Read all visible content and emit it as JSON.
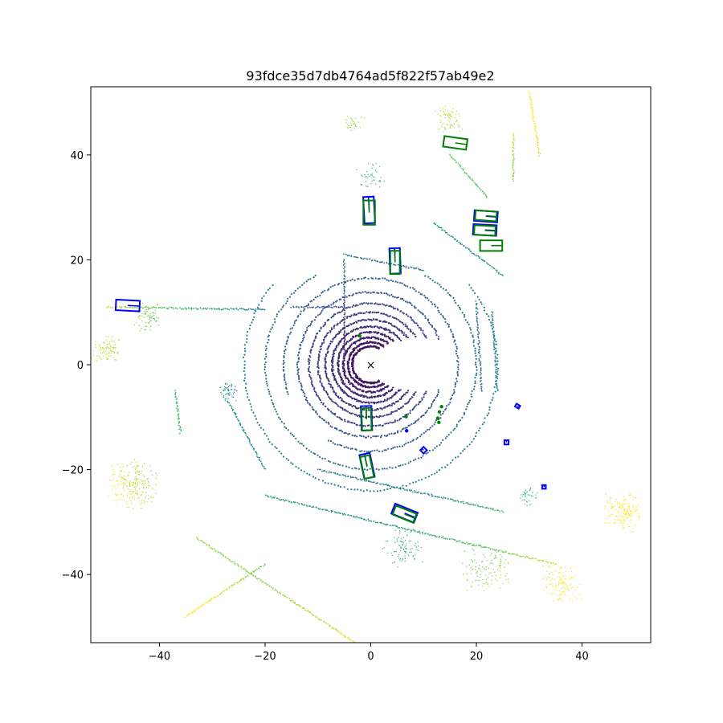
{
  "chart_data": {
    "type": "scatter",
    "title": "93fdce35d7db4764ad5f822f57ab49e2",
    "xlabel": "",
    "ylabel": "",
    "xlim": [
      -53,
      53
    ],
    "ylim": [
      -53,
      53
    ],
    "xticks": [
      -40,
      -20,
      0,
      20,
      40
    ],
    "yticks": [
      -40,
      -20,
      0,
      20,
      40
    ],
    "xtick_labels": [
      "−40",
      "−20",
      "0",
      "20",
      "40"
    ],
    "ytick_labels": [
      "−40",
      "−20",
      "0",
      "20",
      "40"
    ],
    "grid": false,
    "colormap": "viridis",
    "color_encodes": "distance from origin",
    "ego_marker": {
      "symbol": "×",
      "x": 0,
      "y": 0
    },
    "rings": [
      {
        "r": 3.5,
        "gap_start": -60,
        "gap_end": 60
      },
      {
        "r": 4.3,
        "gap_start": -55,
        "gap_end": 55
      },
      {
        "r": 5.2,
        "gap_start": -50,
        "gap_end": 50
      },
      {
        "r": 6.2,
        "gap_start": -45,
        "gap_end": 45
      },
      {
        "r": 7.3,
        "gap_start": -40,
        "gap_end": 40
      },
      {
        "r": 8.6,
        "gap_start": -35,
        "gap_end": 35
      },
      {
        "r": 10.0,
        "gap_start": -30,
        "gap_end": 30
      },
      {
        "r": 11.7,
        "gap_start": -25,
        "gap_end": 25
      },
      {
        "r": 13.8,
        "gap_start": -20,
        "gap_end": 20
      },
      {
        "r": 16.5,
        "gap_start": 200,
        "gap_end": 240
      },
      {
        "r": 20.0,
        "gap_start": 60,
        "gap_end": 120
      },
      {
        "r": 24.0,
        "gap_start": 40,
        "gap_end": 140
      }
    ],
    "segments": [
      {
        "x": [
          -50,
          -20
        ],
        "y": [
          11,
          10.5
        ]
      },
      {
        "x": [
          -15,
          -5
        ],
        "y": [
          11,
          11
        ]
      },
      {
        "x": [
          -35,
          -20
        ],
        "y": [
          -48,
          -38
        ]
      },
      {
        "x": [
          -33,
          -3
        ],
        "y": [
          -33,
          -53
        ]
      },
      {
        "x": [
          -20,
          35
        ],
        "y": [
          -25,
          -38
        ]
      },
      {
        "x": [
          -10,
          25
        ],
        "y": [
          -20,
          -28
        ]
      },
      {
        "x": [
          -5,
          -5
        ],
        "y": [
          2,
          20
        ]
      },
      {
        "x": [
          -5,
          10
        ],
        "y": [
          21,
          18
        ]
      },
      {
        "x": [
          12,
          25
        ],
        "y": [
          27,
          17
        ]
      },
      {
        "x": [
          15,
          22
        ],
        "y": [
          40,
          32
        ]
      },
      {
        "x": [
          30,
          32
        ],
        "y": [
          52,
          40
        ]
      },
      {
        "x": [
          27,
          27
        ],
        "y": [
          44,
          35
        ]
      },
      {
        "x": [
          23,
          24
        ],
        "y": [
          10,
          -5
        ]
      },
      {
        "x": [
          20,
          21
        ],
        "y": [
          12,
          -5
        ]
      },
      {
        "x": [
          -37,
          -36
        ],
        "y": [
          -5,
          -13
        ]
      },
      {
        "x": [
          -27,
          -20
        ],
        "y": [
          -7,
          -20
        ]
      }
    ],
    "clusters": [
      {
        "cx": -45,
        "cy": -23,
        "spread": 5,
        "n": 220
      },
      {
        "cx": 48,
        "cy": -28,
        "spread": 4,
        "n": 160
      },
      {
        "cx": 36,
        "cy": -42,
        "spread": 4,
        "n": 120
      },
      {
        "cx": 22,
        "cy": -39,
        "spread": 5,
        "n": 120
      },
      {
        "cx": 6,
        "cy": -35,
        "spread": 4,
        "n": 90
      },
      {
        "cx": -50,
        "cy": 3,
        "spread": 3,
        "n": 90
      },
      {
        "cx": -42,
        "cy": 9,
        "spread": 3,
        "n": 70
      },
      {
        "cx": -27,
        "cy": -5,
        "spread": 2,
        "n": 50
      },
      {
        "cx": 15,
        "cy": 47,
        "spread": 3,
        "n": 70
      },
      {
        "cx": 30,
        "cy": -25,
        "spread": 2,
        "n": 40
      },
      {
        "cx": -3,
        "cy": 46,
        "spread": 2,
        "n": 30
      },
      {
        "cx": 0,
        "cy": 36,
        "spread": 3,
        "n": 40
      }
    ],
    "boxes": [
      {
        "cx": -46,
        "cy": 11.3,
        "w": 4.5,
        "h": 2.0,
        "angle": -3,
        "color": "#0000ff"
      },
      {
        "cx": -0.3,
        "cy": 29.5,
        "w": 2.0,
        "h": 5.0,
        "angle": 3,
        "color": "#0000ff"
      },
      {
        "cx": -0.3,
        "cy": 29.0,
        "w": 2.2,
        "h": 4.6,
        "angle": 0,
        "color": "#008000"
      },
      {
        "cx": 4.6,
        "cy": 19.8,
        "w": 2.0,
        "h": 4.8,
        "angle": 2,
        "color": "#0000ff"
      },
      {
        "cx": 4.6,
        "cy": 19.5,
        "w": 1.8,
        "h": 4.4,
        "angle": 0,
        "color": "#008000"
      },
      {
        "cx": 16.0,
        "cy": 42.3,
        "w": 4.4,
        "h": 2.0,
        "angle": -8,
        "color": "#008000"
      },
      {
        "cx": 21.8,
        "cy": 28.3,
        "w": 4.4,
        "h": 2.0,
        "angle": -4,
        "color": "#0000ff"
      },
      {
        "cx": 21.8,
        "cy": 28.4,
        "w": 4.0,
        "h": 1.8,
        "angle": -4,
        "color": "#008000"
      },
      {
        "cx": 21.6,
        "cy": 25.7,
        "w": 4.4,
        "h": 2.0,
        "angle": -3,
        "color": "#0000ff"
      },
      {
        "cx": 21.6,
        "cy": 25.6,
        "w": 4.0,
        "h": 1.8,
        "angle": -3,
        "color": "#008000"
      },
      {
        "cx": 22.8,
        "cy": 22.7,
        "w": 4.2,
        "h": 2.0,
        "angle": 0,
        "color": "#008000"
      },
      {
        "cx": -0.8,
        "cy": -10.2,
        "w": 2.0,
        "h": 4.6,
        "angle": 2,
        "color": "#0000ff"
      },
      {
        "cx": -0.8,
        "cy": -10.4,
        "w": 1.8,
        "h": 4.2,
        "angle": 2,
        "color": "#008000"
      },
      {
        "cx": -0.7,
        "cy": -19.3,
        "w": 2.0,
        "h": 4.6,
        "angle": 12,
        "color": "#0000ff"
      },
      {
        "cx": -0.7,
        "cy": -19.5,
        "w": 1.8,
        "h": 4.2,
        "angle": 12,
        "color": "#008000"
      },
      {
        "cx": 6.4,
        "cy": -28.3,
        "w": 4.6,
        "h": 2.0,
        "angle": -22,
        "color": "#0000ff"
      },
      {
        "cx": 6.4,
        "cy": -28.5,
        "w": 4.2,
        "h": 1.8,
        "angle": -22,
        "color": "#008000"
      },
      {
        "cx": 10.0,
        "cy": -16.3,
        "w": 0.9,
        "h": 0.9,
        "angle": 45,
        "color": "#0000ff"
      },
      {
        "cx": 25.7,
        "cy": -14.8,
        "w": 0.8,
        "h": 0.8,
        "angle": 0,
        "color": "#0000ff"
      },
      {
        "cx": 27.8,
        "cy": -7.9,
        "w": 0.8,
        "h": 0.6,
        "angle": -30,
        "color": "#0000ff"
      },
      {
        "cx": 32.8,
        "cy": -23.3,
        "w": 0.7,
        "h": 0.7,
        "angle": 0,
        "color": "#0000ff"
      }
    ],
    "dots": [
      {
        "x": 6.8,
        "y": -12.6,
        "color": "#0000ff"
      },
      {
        "x": 6.7,
        "y": -9.9,
        "color": "#008000"
      },
      {
        "x": 12.7,
        "y": -10.2,
        "color": "#008000"
      },
      {
        "x": 13.0,
        "y": -9.0,
        "color": "#008000"
      },
      {
        "x": 13.4,
        "y": -8.0,
        "color": "#008000"
      },
      {
        "x": 12.9,
        "y": -11.0,
        "color": "#008000"
      },
      {
        "x": -2.1,
        "y": 5.5,
        "color": "#008000"
      }
    ]
  }
}
